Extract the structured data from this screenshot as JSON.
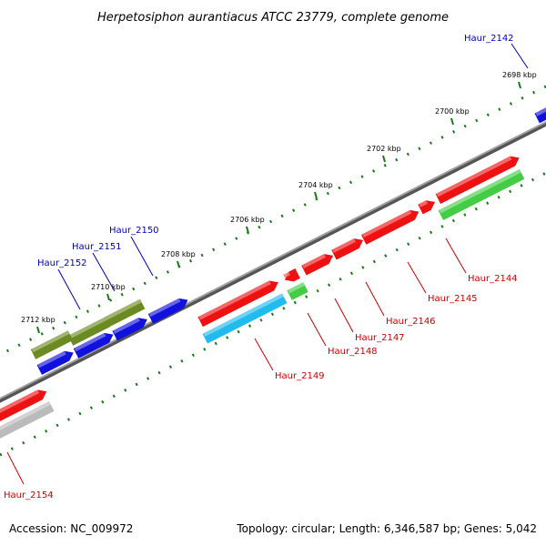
{
  "title": "Herpetosiphon aurantiacus ATCC 23779, complete genome",
  "footer": {
    "accession": "Accession: NC_009972",
    "summary": "Topology: circular; Length: 6,346,587 bp; Genes: 5,042"
  },
  "colors": {
    "backbone": "#808080",
    "tick": "#1a7a1a",
    "label_red": "#cc0000",
    "label_blue": "#0000bb",
    "red": "#ee1111",
    "green": "#44cc44",
    "cyan": "#22bbee",
    "olive": "#6b8a22",
    "blue": "#1111dd",
    "gray": "#bbbbbb"
  },
  "scale": {
    "unit": "kbp",
    "ticks": [
      {
        "kbp": 2698,
        "label": "2698 kbp"
      },
      {
        "kbp": 2700,
        "label": "2700 kbp"
      },
      {
        "kbp": 2702,
        "label": "2702 kbp"
      },
      {
        "kbp": 2704,
        "label": "2704 kbp"
      },
      {
        "kbp": 2706,
        "label": "2706 kbp"
      },
      {
        "kbp": 2708,
        "label": "2708 kbp"
      },
      {
        "kbp": 2710,
        "label": "2710 kbp"
      },
      {
        "kbp": 2712,
        "label": "2712 kbp"
      }
    ]
  },
  "genes": [
    {
      "label": "Haur_2142",
      "color": "blue"
    },
    {
      "label": "Haur_2144",
      "color": "red"
    },
    {
      "label": "Haur_2145",
      "color": "red"
    },
    {
      "label": "Haur_2146",
      "color": "red"
    },
    {
      "label": "Haur_2147",
      "color": "red"
    },
    {
      "label": "Haur_2148",
      "color": "red"
    },
    {
      "label": "Haur_2149",
      "color": "red"
    },
    {
      "label": "Haur_2150",
      "color": "blue"
    },
    {
      "label": "Haur_2151",
      "color": "blue"
    },
    {
      "label": "Haur_2152",
      "color": "blue"
    },
    {
      "label": "Haur_2154",
      "color": "red"
    }
  ]
}
